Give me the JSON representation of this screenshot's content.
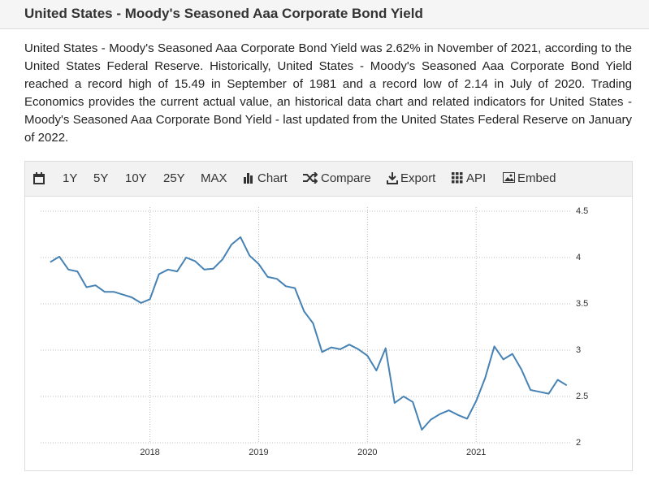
{
  "header": {
    "title": "United States - Moody's Seasoned Aaa Corporate Bond Yield"
  },
  "description": "United States - Moody's Seasoned Aaa Corporate Bond Yield was 2.62% in November of 2021, according to the United States Federal Reserve. Historically, United States - Moody's Seasoned Aaa Corporate Bond Yield reached a record high of 15.49 in September of 1981 and a record low of 2.14 in July of 2020. Trading Economics provides the current actual value, an historical data chart and related indicators for United States - Moody's Seasoned Aaa Corporate Bond Yield - last updated from the United States Federal Reserve on January of 2022.",
  "toolbar": [
    "1Y",
    "5Y",
    "10Y",
    "25Y",
    "MAX",
    "Chart",
    "Compare",
    "Export",
    "API",
    "Embed"
  ],
  "chart_data": {
    "type": "line",
    "color": "#4682b4",
    "grid": true,
    "x": [
      2017.083,
      2017.167,
      2017.25,
      2017.333,
      2017.417,
      2017.5,
      2017.583,
      2017.667,
      2017.75,
      2017.833,
      2017.917,
      2018,
      2018.083,
      2018.167,
      2018.25,
      2018.333,
      2018.417,
      2018.5,
      2018.583,
      2018.667,
      2018.75,
      2018.833,
      2018.917,
      2019,
      2019.083,
      2019.167,
      2019.25,
      2019.333,
      2019.417,
      2019.5,
      2019.583,
      2019.667,
      2019.75,
      2019.833,
      2019.917,
      2020,
      2020.083,
      2020.167,
      2020.25,
      2020.333,
      2020.417,
      2020.5,
      2020.583,
      2020.667,
      2020.75,
      2020.833,
      2020.917,
      2021,
      2021.083,
      2021.167,
      2021.25,
      2021.333,
      2021.417,
      2021.5,
      2021.583,
      2021.667,
      2021.75,
      2021.833
    ],
    "values": [
      3.95,
      4.01,
      3.87,
      3.85,
      3.68,
      3.7,
      3.63,
      3.63,
      3.6,
      3.57,
      3.51,
      3.55,
      3.82,
      3.87,
      3.85,
      4.0,
      3.96,
      3.87,
      3.88,
      3.98,
      4.14,
      4.22,
      4.02,
      3.93,
      3.79,
      3.77,
      3.69,
      3.67,
      3.42,
      3.29,
      2.98,
      3.03,
      3.01,
      3.06,
      3.01,
      2.94,
      2.78,
      3.02,
      2.43,
      2.5,
      2.44,
      2.14,
      2.25,
      2.31,
      2.35,
      2.3,
      2.26,
      2.45,
      2.7,
      3.04,
      2.9,
      2.96,
      2.79,
      2.57,
      2.55,
      2.53,
      2.68,
      2.62
    ],
    "xlim": [
      2016.92,
      2021.85
    ],
    "xticks": [
      2018,
      2019,
      2020,
      2021
    ],
    "ylim": [
      2,
      4.5
    ],
    "yticks": [
      2,
      2.5,
      3,
      3.5,
      4,
      4.5
    ]
  }
}
